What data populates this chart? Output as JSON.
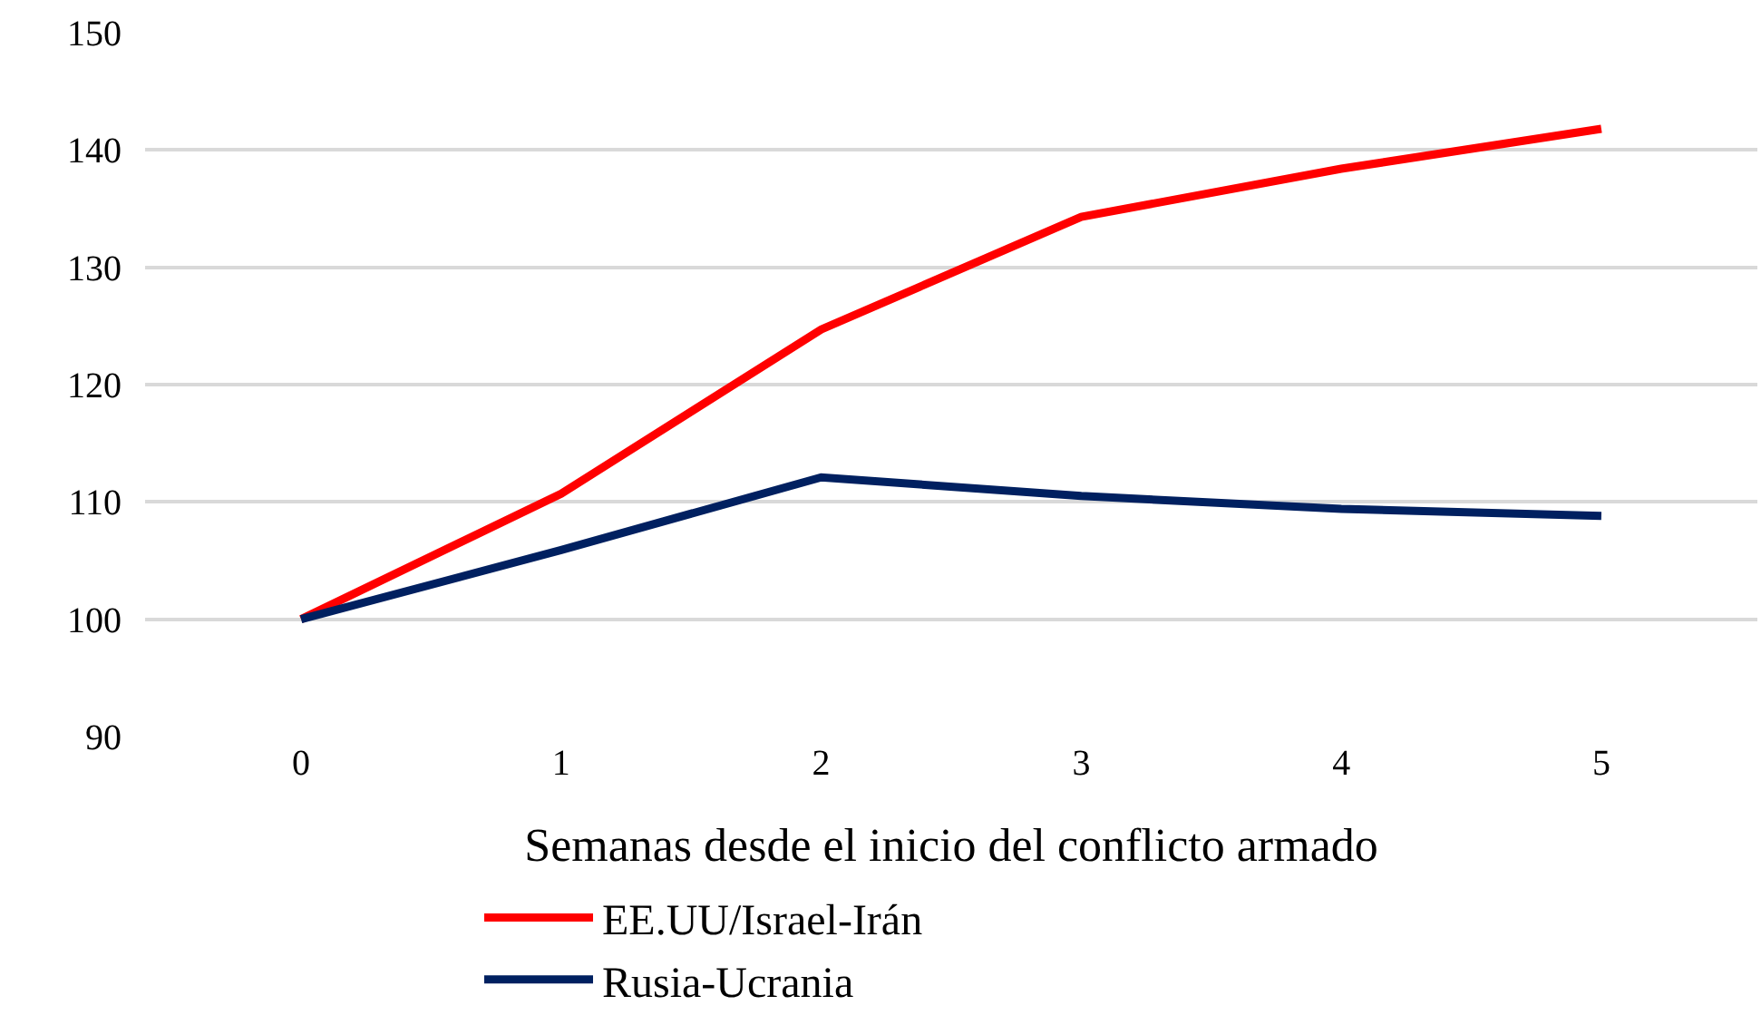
{
  "chart_data": {
    "type": "line",
    "xlabel": "Semanas desde el inicio del conflicto armado",
    "categories": [
      "0",
      "1",
      "2",
      "3",
      "4",
      "5"
    ],
    "series": [
      {
        "name": "EE.UU/Israel-Irán",
        "color": "#ff0000",
        "values": [
          100,
          110.7,
          124.7,
          134.3,
          138.4,
          141.8
        ]
      },
      {
        "name": "Rusia-Ucrania",
        "color": "#002060",
        "values": [
          100,
          105.9,
          112.1,
          110.5,
          109.4,
          108.8
        ]
      }
    ],
    "ylim": [
      90,
      150
    ],
    "yticks": [
      90,
      100,
      110,
      120,
      130,
      140,
      150
    ],
    "grid": "y",
    "legend": "bottom",
    "marker": "none",
    "line_style": "solid"
  }
}
